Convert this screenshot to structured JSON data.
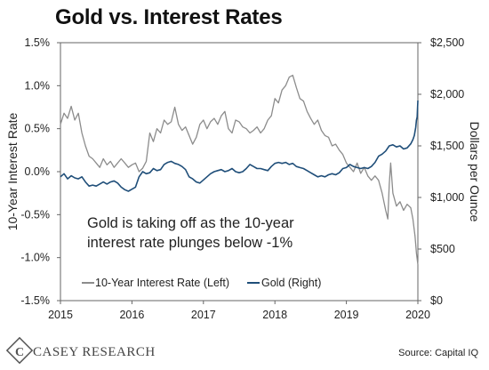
{
  "chart_data": {
    "type": "line",
    "title": "Gold vs. Interest Rates",
    "ylabel_left": "10-Year Interest Rate",
    "ylabel_right": "Dollars per Ounce",
    "x_ticks": [
      "2015",
      "2016",
      "2017",
      "2018",
      "2019",
      "2020"
    ],
    "y_left_ticks": [
      "1.5%",
      "1.0%",
      "0.5%",
      "0.0%",
      "-0.5%",
      "-1.0%",
      "-1.5%"
    ],
    "y_right_ticks": [
      "$2,500",
      "$2,000",
      "$1,500",
      "$1,000",
      "$500",
      "$0"
    ],
    "ylim_left": [
      -1.5,
      1.5
    ],
    "ylim_right": [
      0,
      2500
    ],
    "xlim": [
      2015.0,
      2020.0
    ],
    "grid": false,
    "annotation": "Gold is taking off as the 10-year\ninterest rate plunges below -1%",
    "legend_position": "bottom-left",
    "series": [
      {
        "name": "10-Year Interest Rate (Left)",
        "axis": "left",
        "color": "#8c8c8c",
        "points": [
          [
            2015.0,
            0.55
          ],
          [
            2015.05,
            0.68
          ],
          [
            2015.1,
            0.62
          ],
          [
            2015.15,
            0.76
          ],
          [
            2015.2,
            0.6
          ],
          [
            2015.25,
            0.68
          ],
          [
            2015.3,
            0.45
          ],
          [
            2015.35,
            0.3
          ],
          [
            2015.4,
            0.18
          ],
          [
            2015.45,
            0.15
          ],
          [
            2015.5,
            0.1
          ],
          [
            2015.55,
            0.05
          ],
          [
            2015.6,
            0.15
          ],
          [
            2015.65,
            0.08
          ],
          [
            2015.7,
            0.12
          ],
          [
            2015.75,
            0.05
          ],
          [
            2015.8,
            0.1
          ],
          [
            2015.85,
            0.15
          ],
          [
            2015.9,
            0.1
          ],
          [
            2015.95,
            0.05
          ],
          [
            2016.0,
            0.08
          ],
          [
            2016.05,
            0.1
          ],
          [
            2016.1,
            0.0
          ],
          [
            2016.15,
            0.04
          ],
          [
            2016.2,
            0.12
          ],
          [
            2016.25,
            0.45
          ],
          [
            2016.3,
            0.35
          ],
          [
            2016.35,
            0.5
          ],
          [
            2016.4,
            0.45
          ],
          [
            2016.45,
            0.6
          ],
          [
            2016.5,
            0.55
          ],
          [
            2016.55,
            0.58
          ],
          [
            2016.6,
            0.75
          ],
          [
            2016.65,
            0.55
          ],
          [
            2016.7,
            0.48
          ],
          [
            2016.75,
            0.52
          ],
          [
            2016.8,
            0.42
          ],
          [
            2016.85,
            0.32
          ],
          [
            2016.9,
            0.4
          ],
          [
            2016.95,
            0.55
          ],
          [
            2017.0,
            0.6
          ],
          [
            2017.05,
            0.5
          ],
          [
            2017.1,
            0.58
          ],
          [
            2017.15,
            0.62
          ],
          [
            2017.2,
            0.55
          ],
          [
            2017.25,
            0.65
          ],
          [
            2017.3,
            0.7
          ],
          [
            2017.35,
            0.5
          ],
          [
            2017.4,
            0.45
          ],
          [
            2017.45,
            0.6
          ],
          [
            2017.5,
            0.58
          ],
          [
            2017.55,
            0.52
          ],
          [
            2017.6,
            0.5
          ],
          [
            2017.65,
            0.45
          ],
          [
            2017.7,
            0.48
          ],
          [
            2017.75,
            0.52
          ],
          [
            2017.8,
            0.45
          ],
          [
            2017.85,
            0.5
          ],
          [
            2017.9,
            0.6
          ],
          [
            2017.95,
            0.65
          ],
          [
            2018.0,
            0.85
          ],
          [
            2018.05,
            0.8
          ],
          [
            2018.1,
            0.95
          ],
          [
            2018.15,
            1.0
          ],
          [
            2018.2,
            1.1
          ],
          [
            2018.25,
            1.12
          ],
          [
            2018.3,
            0.98
          ],
          [
            2018.35,
            0.85
          ],
          [
            2018.4,
            0.82
          ],
          [
            2018.45,
            0.7
          ],
          [
            2018.5,
            0.62
          ],
          [
            2018.55,
            0.55
          ],
          [
            2018.6,
            0.6
          ],
          [
            2018.65,
            0.48
          ],
          [
            2018.7,
            0.42
          ],
          [
            2018.75,
            0.4
          ],
          [
            2018.8,
            0.3
          ],
          [
            2018.85,
            0.32
          ],
          [
            2018.9,
            0.25
          ],
          [
            2018.95,
            0.2
          ],
          [
            2019.0,
            0.1
          ],
          [
            2019.05,
            0.05
          ],
          [
            2019.1,
            0.0
          ],
          [
            2019.15,
            0.1
          ],
          [
            2019.2,
            -0.02
          ],
          [
            2019.25,
            0.05
          ],
          [
            2019.3,
            -0.05
          ],
          [
            2019.35,
            -0.1
          ],
          [
            2019.4,
            -0.05
          ],
          [
            2019.45,
            -0.1
          ],
          [
            2019.5,
            -0.25
          ],
          [
            2019.55,
            -0.45
          ],
          [
            2019.58,
            -0.55
          ],
          [
            2019.6,
            -0.15
          ],
          [
            2019.62,
            0.1
          ],
          [
            2019.65,
            -0.25
          ],
          [
            2019.7,
            -0.4
          ],
          [
            2019.75,
            -0.35
          ],
          [
            2019.8,
            -0.45
          ],
          [
            2019.85,
            -0.38
          ],
          [
            2019.9,
            -0.42
          ],
          [
            2019.93,
            -0.55
          ],
          [
            2019.96,
            -0.75
          ],
          [
            2019.98,
            -0.95
          ],
          [
            2020.0,
            -1.08
          ]
        ]
      },
      {
        "name": "Gold (Right)",
        "axis": "right",
        "color": "#1f4e79",
        "points": [
          [
            2015.0,
            1200
          ],
          [
            2015.05,
            1230
          ],
          [
            2015.1,
            1180
          ],
          [
            2015.15,
            1210
          ],
          [
            2015.2,
            1190
          ],
          [
            2015.25,
            1180
          ],
          [
            2015.3,
            1200
          ],
          [
            2015.35,
            1150
          ],
          [
            2015.4,
            1110
          ],
          [
            2015.45,
            1120
          ],
          [
            2015.5,
            1110
          ],
          [
            2015.55,
            1130
          ],
          [
            2015.6,
            1150
          ],
          [
            2015.65,
            1130
          ],
          [
            2015.7,
            1150
          ],
          [
            2015.75,
            1160
          ],
          [
            2015.8,
            1140
          ],
          [
            2015.85,
            1100
          ],
          [
            2015.9,
            1075
          ],
          [
            2015.95,
            1060
          ],
          [
            2016.0,
            1080
          ],
          [
            2016.05,
            1100
          ],
          [
            2016.1,
            1200
          ],
          [
            2016.15,
            1250
          ],
          [
            2016.2,
            1230
          ],
          [
            2016.25,
            1240
          ],
          [
            2016.3,
            1280
          ],
          [
            2016.35,
            1260
          ],
          [
            2016.4,
            1270
          ],
          [
            2016.45,
            1320
          ],
          [
            2016.5,
            1340
          ],
          [
            2016.55,
            1350
          ],
          [
            2016.6,
            1330
          ],
          [
            2016.65,
            1320
          ],
          [
            2016.7,
            1300
          ],
          [
            2016.75,
            1270
          ],
          [
            2016.8,
            1200
          ],
          [
            2016.85,
            1180
          ],
          [
            2016.9,
            1150
          ],
          [
            2016.95,
            1140
          ],
          [
            2017.0,
            1170
          ],
          [
            2017.05,
            1200
          ],
          [
            2017.1,
            1230
          ],
          [
            2017.15,
            1250
          ],
          [
            2017.2,
            1260
          ],
          [
            2017.25,
            1270
          ],
          [
            2017.3,
            1250
          ],
          [
            2017.35,
            1260
          ],
          [
            2017.4,
            1280
          ],
          [
            2017.45,
            1250
          ],
          [
            2017.5,
            1240
          ],
          [
            2017.55,
            1250
          ],
          [
            2017.6,
            1280
          ],
          [
            2017.65,
            1320
          ],
          [
            2017.7,
            1300
          ],
          [
            2017.75,
            1280
          ],
          [
            2017.8,
            1280
          ],
          [
            2017.85,
            1270
          ],
          [
            2017.9,
            1260
          ],
          [
            2017.95,
            1300
          ],
          [
            2018.0,
            1330
          ],
          [
            2018.05,
            1340
          ],
          [
            2018.1,
            1330
          ],
          [
            2018.15,
            1340
          ],
          [
            2018.2,
            1320
          ],
          [
            2018.25,
            1330
          ],
          [
            2018.3,
            1300
          ],
          [
            2018.35,
            1290
          ],
          [
            2018.4,
            1280
          ],
          [
            2018.45,
            1260
          ],
          [
            2018.5,
            1240
          ],
          [
            2018.55,
            1220
          ],
          [
            2018.6,
            1200
          ],
          [
            2018.65,
            1210
          ],
          [
            2018.7,
            1200
          ],
          [
            2018.75,
            1220
          ],
          [
            2018.8,
            1230
          ],
          [
            2018.85,
            1220
          ],
          [
            2018.9,
            1240
          ],
          [
            2018.95,
            1280
          ],
          [
            2019.0,
            1290
          ],
          [
            2019.05,
            1320
          ],
          [
            2019.1,
            1300
          ],
          [
            2019.15,
            1290
          ],
          [
            2019.2,
            1280
          ],
          [
            2019.25,
            1290
          ],
          [
            2019.3,
            1280
          ],
          [
            2019.35,
            1300
          ],
          [
            2019.4,
            1340
          ],
          [
            2019.45,
            1400
          ],
          [
            2019.5,
            1420
          ],
          [
            2019.55,
            1450
          ],
          [
            2019.6,
            1500
          ],
          [
            2019.65,
            1510
          ],
          [
            2019.7,
            1490
          ],
          [
            2019.75,
            1500
          ],
          [
            2019.8,
            1470
          ],
          [
            2019.85,
            1480
          ],
          [
            2019.9,
            1520
          ],
          [
            2019.93,
            1560
          ],
          [
            2019.95,
            1600
          ],
          [
            2019.97,
            1680
          ],
          [
            2019.98,
            1750
          ],
          [
            2019.99,
            1780
          ],
          [
            2020.0,
            1940
          ]
        ]
      }
    ]
  },
  "brand": {
    "logo_text": "CASEY RESEARCH"
  },
  "source": "Source: Capital IQ"
}
